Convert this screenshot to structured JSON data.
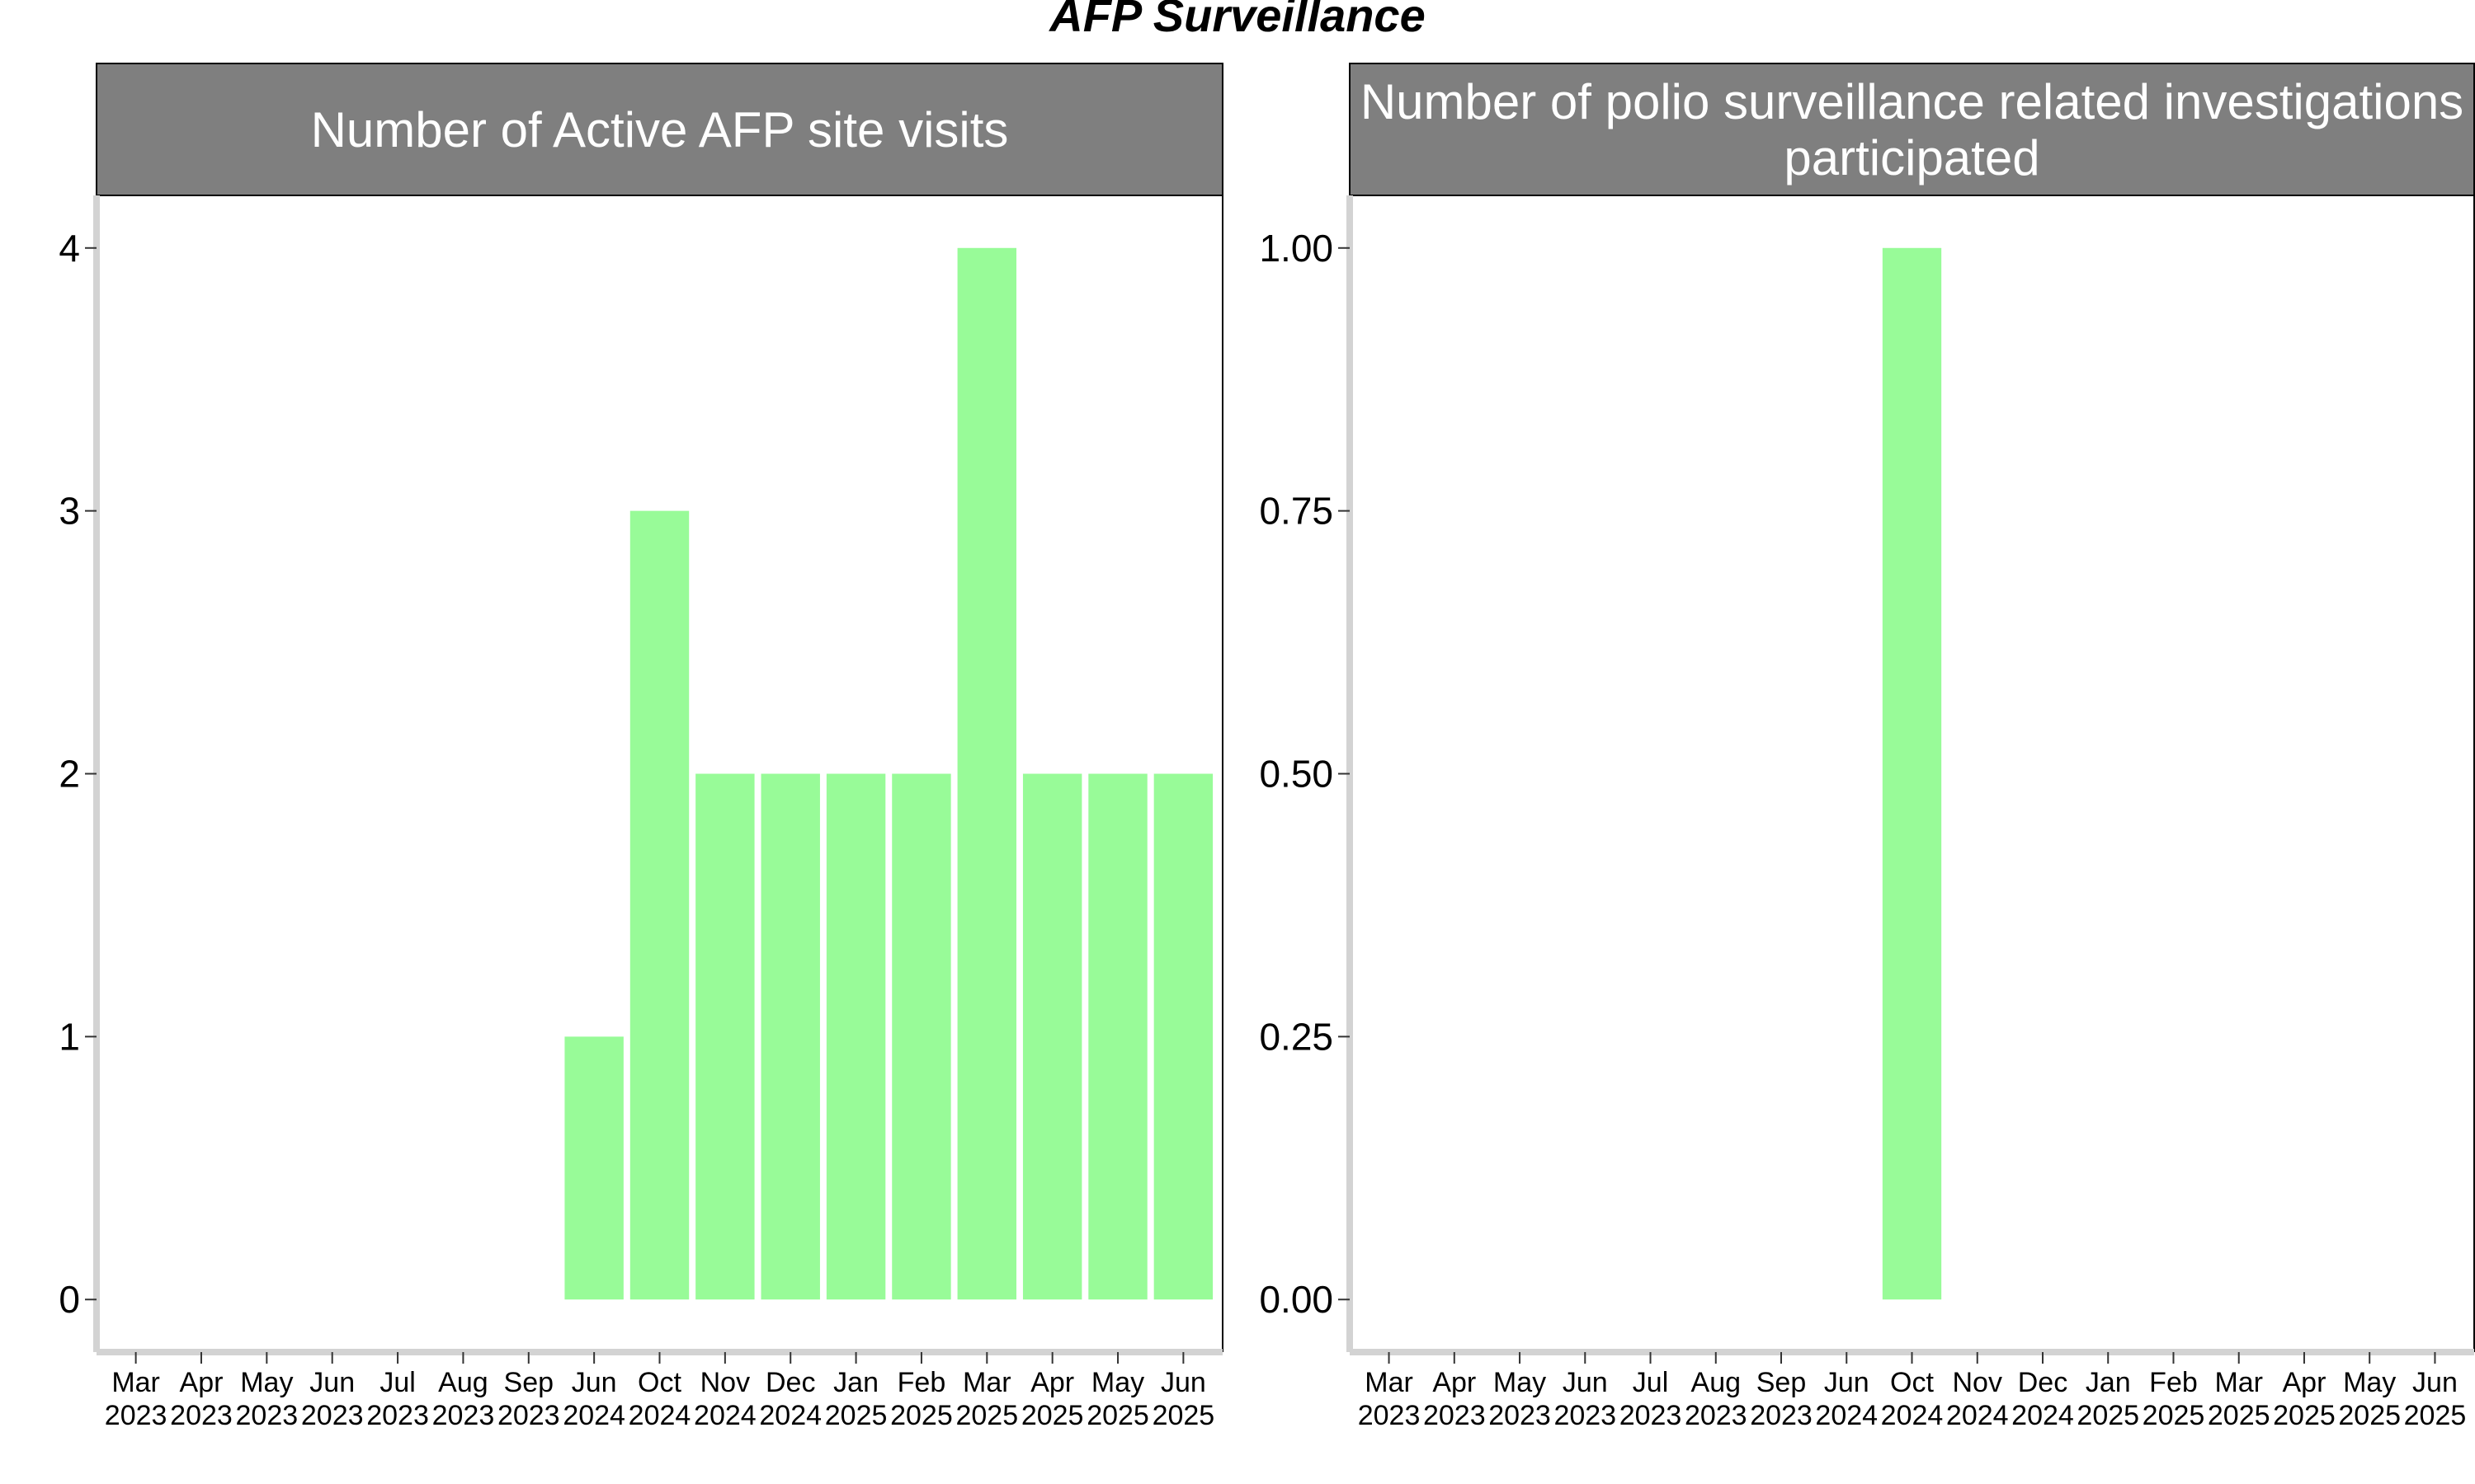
{
  "title": "AFP Surveillance",
  "colors": {
    "bar": "#98FB98",
    "strip": "#7F7F7F",
    "axis": "#D3D3D3"
  },
  "chart_data": [
    {
      "type": "bar",
      "title": "Number of Active AFP site visits",
      "categories": [
        {
          "month": "Mar",
          "year": "2023"
        },
        {
          "month": "Apr",
          "year": "2023"
        },
        {
          "month": "May",
          "year": "2023"
        },
        {
          "month": "Jun",
          "year": "2023"
        },
        {
          "month": "Jul",
          "year": "2023"
        },
        {
          "month": "Aug",
          "year": "2023"
        },
        {
          "month": "Sep",
          "year": "2023"
        },
        {
          "month": "Jun",
          "year": "2024"
        },
        {
          "month": "Oct",
          "year": "2024"
        },
        {
          "month": "Nov",
          "year": "2024"
        },
        {
          "month": "Dec",
          "year": "2024"
        },
        {
          "month": "Jan",
          "year": "2025"
        },
        {
          "month": "Feb",
          "year": "2025"
        },
        {
          "month": "Mar",
          "year": "2025"
        },
        {
          "month": "Apr",
          "year": "2025"
        },
        {
          "month": "May",
          "year": "2025"
        },
        {
          "month": "Jun",
          "year": "2025"
        }
      ],
      "values": [
        0,
        0,
        0,
        0,
        0,
        0,
        0,
        1,
        3,
        2,
        2,
        2,
        2,
        4,
        2,
        2,
        2
      ],
      "yticks": [
        "0",
        "1",
        "2",
        "3",
        "4"
      ],
      "ylim": [
        -0.2,
        4.2
      ]
    },
    {
      "type": "bar",
      "title": "Number of polio surveillance related investigations participated",
      "title_lines": [
        "Number of polio surveillance related investigations",
        "participated"
      ],
      "categories": [
        {
          "month": "Mar",
          "year": "2023"
        },
        {
          "month": "Apr",
          "year": "2023"
        },
        {
          "month": "May",
          "year": "2023"
        },
        {
          "month": "Jun",
          "year": "2023"
        },
        {
          "month": "Jul",
          "year": "2023"
        },
        {
          "month": "Aug",
          "year": "2023"
        },
        {
          "month": "Sep",
          "year": "2023"
        },
        {
          "month": "Jun",
          "year": "2024"
        },
        {
          "month": "Oct",
          "year": "2024"
        },
        {
          "month": "Nov",
          "year": "2024"
        },
        {
          "month": "Dec",
          "year": "2024"
        },
        {
          "month": "Jan",
          "year": "2025"
        },
        {
          "month": "Feb",
          "year": "2025"
        },
        {
          "month": "Mar",
          "year": "2025"
        },
        {
          "month": "Apr",
          "year": "2025"
        },
        {
          "month": "May",
          "year": "2025"
        },
        {
          "month": "Jun",
          "year": "2025"
        }
      ],
      "values": [
        0,
        0,
        0,
        0,
        0,
        0,
        0,
        0,
        1,
        0,
        0,
        0,
        0,
        0,
        0,
        0,
        0
      ],
      "yticks": [
        "0.00",
        "0.25",
        "0.50",
        "0.75",
        "1.00"
      ],
      "ylim": [
        -0.05,
        1.05
      ]
    }
  ]
}
